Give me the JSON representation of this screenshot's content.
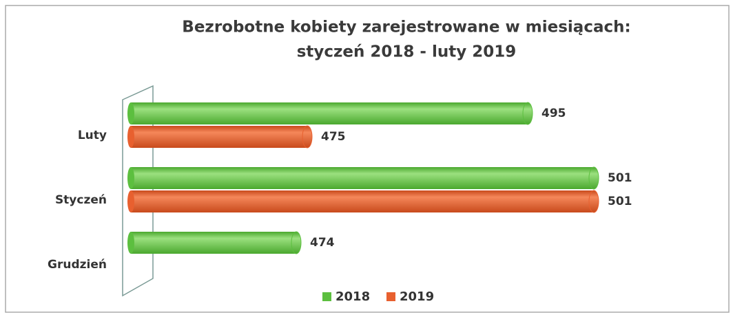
{
  "chart_data": {
    "type": "bar",
    "orientation": "horizontal",
    "title": [
      "Bezrobotne kobiety zarejestrowane w miesiącach:",
      "styczeń 2018 - luty 2019"
    ],
    "categories": [
      "Luty",
      "Styczeń",
      "Grudzień"
    ],
    "series": [
      {
        "name": "2018",
        "color": "#5cbf3f",
        "values": [
          495,
          501,
          474
        ]
      },
      {
        "name": "2019",
        "color": "#e8602f",
        "values": [
          475,
          501,
          null
        ]
      }
    ],
    "xlim": [
      459,
      505
    ],
    "legend": "bottom"
  }
}
